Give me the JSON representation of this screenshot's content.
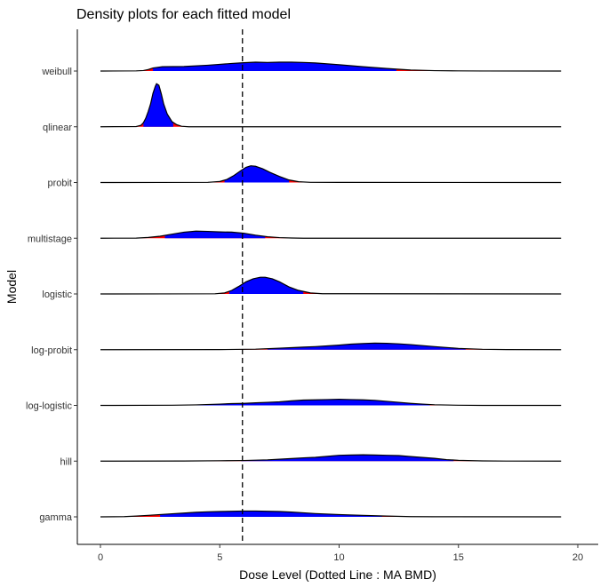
{
  "chart_data": {
    "type": "ridgeline-density",
    "title": "Density plots for each fitted model",
    "xlabel": "Dose Level (Dotted Line : MA BMD)",
    "ylabel": "Model",
    "xlim": [
      -1,
      20.5
    ],
    "x_ticks": [
      0,
      5,
      10,
      15,
      20
    ],
    "x_tick_labels": [
      "0",
      "5",
      "10",
      "15",
      "20"
    ],
    "reference_line": {
      "x": 5.95,
      "style": "dashed"
    },
    "colors": {
      "interval": "#0000ff",
      "tail": "#ff0000",
      "outline": "#000000"
    },
    "grid": false,
    "series": [
      {
        "name": "weibull",
        "points": [
          [
            0,
            0
          ],
          [
            1.5,
            0.003
          ],
          [
            1.8,
            0.01
          ],
          [
            2,
            0.03
          ],
          [
            2.2,
            0.06
          ],
          [
            2.6,
            0.085
          ],
          [
            3.5,
            0.09
          ],
          [
            4.5,
            0.115
          ],
          [
            5.5,
            0.15
          ],
          [
            6,
            0.165
          ],
          [
            6.5,
            0.175
          ],
          [
            7,
            0.17
          ],
          [
            7.5,
            0.175
          ],
          [
            8,
            0.175
          ],
          [
            8.5,
            0.17
          ],
          [
            9,
            0.16
          ],
          [
            10,
            0.125
          ],
          [
            11,
            0.085
          ],
          [
            12,
            0.05
          ],
          [
            13,
            0.02
          ],
          [
            14,
            0.008
          ],
          [
            15,
            0.003
          ],
          [
            16,
            0.001
          ],
          [
            19.3,
            0
          ]
        ],
        "interval": [
          2.2,
          12.4
        ]
      },
      {
        "name": "qlinear",
        "points": [
          [
            0,
            0
          ],
          [
            1.5,
            0.005
          ],
          [
            1.7,
            0.03
          ],
          [
            1.8,
            0.08
          ],
          [
            1.9,
            0.17
          ],
          [
            2,
            0.3
          ],
          [
            2.1,
            0.45
          ],
          [
            2.2,
            0.66
          ],
          [
            2.3,
            0.8
          ],
          [
            2.35,
            0.85
          ],
          [
            2.45,
            0.82
          ],
          [
            2.55,
            0.65
          ],
          [
            2.65,
            0.45
          ],
          [
            2.8,
            0.25
          ],
          [
            3,
            0.1
          ],
          [
            3.2,
            0.04
          ],
          [
            3.4,
            0.01
          ],
          [
            3.7,
            0
          ],
          [
            19.3,
            0
          ]
        ],
        "interval": [
          1.8,
          3.05
        ]
      },
      {
        "name": "probit",
        "points": [
          [
            0,
            0
          ],
          [
            4.5,
            0.003
          ],
          [
            5,
            0.02
          ],
          [
            5.3,
            0.06
          ],
          [
            5.6,
            0.14
          ],
          [
            5.9,
            0.24
          ],
          [
            6.1,
            0.3
          ],
          [
            6.3,
            0.33
          ],
          [
            6.5,
            0.32
          ],
          [
            6.8,
            0.27
          ],
          [
            7.1,
            0.2
          ],
          [
            7.5,
            0.12
          ],
          [
            7.9,
            0.05
          ],
          [
            8.3,
            0.015
          ],
          [
            8.8,
            0.003
          ],
          [
            19.3,
            0
          ]
        ],
        "interval": [
          5.2,
          7.9
        ]
      },
      {
        "name": "multistage",
        "points": [
          [
            0,
            0
          ],
          [
            1.5,
            0.002
          ],
          [
            2,
            0.015
          ],
          [
            2.5,
            0.04
          ],
          [
            3,
            0.08
          ],
          [
            3.5,
            0.12
          ],
          [
            4,
            0.14
          ],
          [
            4.5,
            0.135
          ],
          [
            5,
            0.125
          ],
          [
            5.5,
            0.12
          ],
          [
            6,
            0.1
          ],
          [
            6.5,
            0.06
          ],
          [
            7,
            0.03
          ],
          [
            7.5,
            0.012
          ],
          [
            8,
            0.004
          ],
          [
            8.5,
            0
          ],
          [
            19.3,
            0
          ]
        ],
        "interval": [
          2.7,
          6.9
        ]
      },
      {
        "name": "logistic",
        "points": [
          [
            0,
            0
          ],
          [
            4.8,
            0.003
          ],
          [
            5.2,
            0.02
          ],
          [
            5.5,
            0.07
          ],
          [
            5.8,
            0.15
          ],
          [
            6.1,
            0.24
          ],
          [
            6.4,
            0.3
          ],
          [
            6.7,
            0.33
          ],
          [
            6.9,
            0.33
          ],
          [
            7.2,
            0.3
          ],
          [
            7.5,
            0.24
          ],
          [
            7.9,
            0.14
          ],
          [
            8.3,
            0.07
          ],
          [
            8.8,
            0.02
          ],
          [
            9.3,
            0.004
          ],
          [
            19.3,
            0
          ]
        ],
        "interval": [
          5.4,
          8.5
        ]
      },
      {
        "name": "log-probit",
        "points": [
          [
            0,
            0
          ],
          [
            5,
            0.002
          ],
          [
            6.5,
            0.01
          ],
          [
            7.5,
            0.03
          ],
          [
            8,
            0.04
          ],
          [
            8.5,
            0.05
          ],
          [
            9,
            0.06
          ],
          [
            9.5,
            0.075
          ],
          [
            10,
            0.09
          ],
          [
            10.5,
            0.11
          ],
          [
            11,
            0.12
          ],
          [
            11.5,
            0.13
          ],
          [
            12,
            0.125
          ],
          [
            12.5,
            0.115
          ],
          [
            13,
            0.1
          ],
          [
            13.5,
            0.08
          ],
          [
            14,
            0.06
          ],
          [
            15,
            0.025
          ],
          [
            16,
            0.008
          ],
          [
            17,
            0.002
          ],
          [
            19.3,
            0
          ]
        ],
        "interval": [
          7.0,
          15.3
        ]
      },
      {
        "name": "log-logistic",
        "points": [
          [
            0,
            0
          ],
          [
            3,
            0.003
          ],
          [
            4,
            0.01
          ],
          [
            5,
            0.025
          ],
          [
            5.5,
            0.035
          ],
          [
            6,
            0.04
          ],
          [
            6.5,
            0.05
          ],
          [
            7,
            0.06
          ],
          [
            7.5,
            0.07
          ],
          [
            8,
            0.09
          ],
          [
            8.5,
            0.105
          ],
          [
            9,
            0.11
          ],
          [
            9.5,
            0.115
          ],
          [
            10,
            0.12
          ],
          [
            10.5,
            0.115
          ],
          [
            11,
            0.11
          ],
          [
            11.5,
            0.1
          ],
          [
            12,
            0.08
          ],
          [
            12.5,
            0.06
          ],
          [
            13,
            0.04
          ],
          [
            13.5,
            0.025
          ],
          [
            14,
            0.012
          ],
          [
            15,
            0.003
          ],
          [
            16,
            0
          ],
          [
            19.3,
            0
          ]
        ],
        "interval": [
          4.0,
          13.8
        ]
      },
      {
        "name": "hill",
        "points": [
          [
            0,
            0
          ],
          [
            3.5,
            0.002
          ],
          [
            5,
            0.008
          ],
          [
            6,
            0.012
          ],
          [
            7,
            0.025
          ],
          [
            8,
            0.05
          ],
          [
            8.5,
            0.065
          ],
          [
            9,
            0.075
          ],
          [
            9.5,
            0.095
          ],
          [
            10,
            0.115
          ],
          [
            10.5,
            0.12
          ],
          [
            11,
            0.125
          ],
          [
            11.5,
            0.12
          ],
          [
            12,
            0.115
          ],
          [
            12.5,
            0.11
          ],
          [
            13,
            0.09
          ],
          [
            14,
            0.055
          ],
          [
            14.5,
            0.03
          ],
          [
            15,
            0.015
          ],
          [
            16,
            0.005
          ],
          [
            17,
            0.001
          ],
          [
            19.3,
            0
          ]
        ],
        "interval": [
          5.9,
          14.8
        ]
      },
      {
        "name": "gamma",
        "points": [
          [
            0,
            0
          ],
          [
            1,
            0.005
          ],
          [
            1.5,
            0.015
          ],
          [
            2,
            0.03
          ],
          [
            2.5,
            0.045
          ],
          [
            3,
            0.06
          ],
          [
            3.5,
            0.075
          ],
          [
            4,
            0.09
          ],
          [
            4.5,
            0.1
          ],
          [
            5,
            0.105
          ],
          [
            5.5,
            0.11
          ],
          [
            6,
            0.115
          ],
          [
            6.5,
            0.115
          ],
          [
            7,
            0.11
          ],
          [
            7.5,
            0.105
          ],
          [
            8,
            0.095
          ],
          [
            8.5,
            0.08
          ],
          [
            9,
            0.065
          ],
          [
            10,
            0.045
          ],
          [
            11,
            0.03
          ],
          [
            12,
            0.015
          ],
          [
            13,
            0.005
          ],
          [
            14,
            0.002
          ],
          [
            19.3,
            0
          ]
        ],
        "interval": [
          2.5,
          11.8
        ]
      }
    ]
  }
}
